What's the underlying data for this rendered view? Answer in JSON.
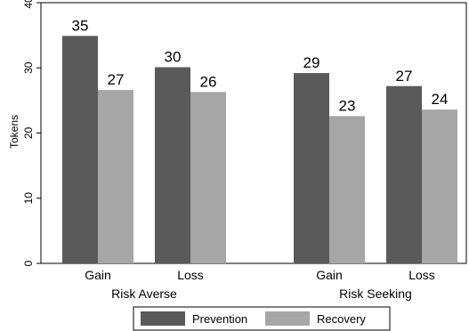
{
  "chart_data": {
    "type": "bar",
    "ylabel": "Tokens",
    "ylim": [
      0,
      40
    ],
    "yticks": [
      0,
      10,
      20,
      30,
      40
    ],
    "grid": false,
    "legend_position": "bottom",
    "groups": [
      {
        "name": "Risk Averse",
        "categories": [
          "Gain",
          "Loss"
        ]
      },
      {
        "name": "Risk Seeking",
        "categories": [
          "Gain",
          "Loss"
        ]
      }
    ],
    "series": [
      {
        "name": "Prevention",
        "color": "#5a5a5a",
        "values": [
          34.9,
          30.1,
          29.2,
          27.2
        ],
        "labels": [
          "35",
          "30",
          "29",
          "27"
        ]
      },
      {
        "name": "Recovery",
        "color": "#a6a6a6",
        "values": [
          26.6,
          26.3,
          22.6,
          23.6
        ],
        "labels": [
          "27",
          "26",
          "23",
          "24"
        ]
      }
    ]
  }
}
